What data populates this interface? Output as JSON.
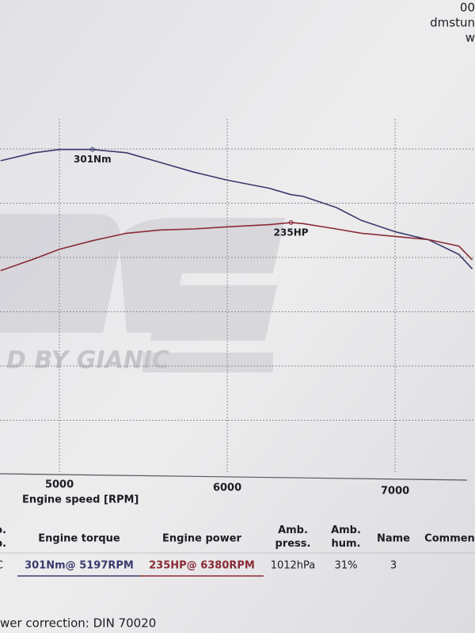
{
  "header": {
    "lines": [
      "00",
      "dmstun",
      "w"
    ]
  },
  "watermark": "D BY GIANIC",
  "chart_data": {
    "type": "line",
    "x_label": "Engine speed [RPM]",
    "x": [
      4650,
      4850,
      5000,
      5197,
      5400,
      5600,
      5800,
      6000,
      6250,
      6380,
      6450,
      6650,
      6800,
      7000,
      7200,
      7380,
      7460
    ],
    "xlim": [
      4646,
      7476
    ],
    "xticks": [
      5000,
      6000,
      7000
    ],
    "ylim": [
      100,
      320
    ],
    "y2lim": [
      0,
      332
    ],
    "grid": true,
    "series": [
      {
        "name": "Engine torque",
        "color": "#3a3a6e",
        "values": [
          294,
          299,
          301,
          301,
          299,
          293,
          287,
          282,
          277,
          273,
          272,
          265,
          257,
          250,
          245,
          236,
          227
        ]
      },
      {
        "name": "Engine power",
        "color": "#8a2a36",
        "axis": "y2",
        "values": [
          190,
          201,
          210,
          218,
          225,
          228,
          229,
          231,
          233,
          235,
          234,
          229,
          225,
          222,
          219,
          213,
          200
        ]
      }
    ],
    "annotations": [
      {
        "text": "301Nm",
        "x": 5197,
        "y": 301,
        "series": 0
      },
      {
        "text": "235HP",
        "x": 6380,
        "y": 235,
        "series": 1
      }
    ]
  },
  "table": {
    "headers": [
      "o.\np.",
      "Engine torque",
      "Engine power",
      "Amb.\npress.",
      "Amb.\nhum.",
      "Name",
      "Commen"
    ],
    "rows": [
      [
        "C",
        "301Nm@ 5197RPM",
        "235HP@ 6380RPM",
        "1012hPa",
        "31%",
        "3",
        ""
      ]
    ]
  },
  "footer": "wer correction: DIN 70020"
}
